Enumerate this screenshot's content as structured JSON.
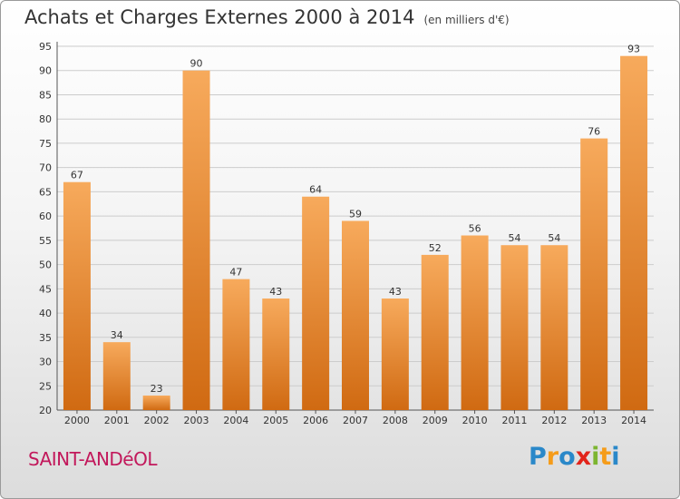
{
  "title": "Achats et Charges Externes 2000 à 2014",
  "subtitle": "(en milliers d'€)",
  "commune": "SAINT-ANDéOL",
  "logo": {
    "letters": [
      "P",
      "r",
      "o",
      "x",
      "i",
      "t",
      "i"
    ],
    "colors": [
      "#2a88c9",
      "#f59c1a",
      "#2a88c9",
      "#e2241b",
      "#7cb530",
      "#f59c1a",
      "#2a88c9"
    ]
  },
  "colors": {
    "bar": "#f08a2a",
    "bar_light": "#f7aa5c",
    "bar_dark": "#d06a12"
  },
  "chart_data": {
    "type": "bar",
    "title": "Achats et Charges Externes 2000 à 2014",
    "subtitle": "(en milliers d'€)",
    "categories": [
      "2000",
      "2001",
      "2002",
      "2003",
      "2004",
      "2005",
      "2006",
      "2007",
      "2008",
      "2009",
      "2010",
      "2011",
      "2012",
      "2013",
      "2014"
    ],
    "values": [
      67,
      34,
      23,
      90,
      47,
      43,
      64,
      59,
      43,
      52,
      56,
      54,
      54,
      76,
      93
    ],
    "ylim": [
      20,
      95
    ],
    "yticks": [
      20,
      25,
      30,
      35,
      40,
      45,
      50,
      55,
      60,
      65,
      70,
      75,
      80,
      85,
      90,
      95
    ],
    "grid": true,
    "xlabel": "",
    "ylabel": ""
  }
}
